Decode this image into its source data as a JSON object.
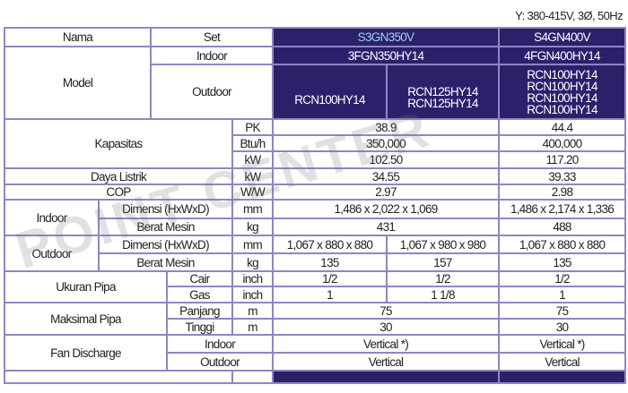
{
  "voltage_note": "Y: 380-415V, 3Ø, 50Hz",
  "watermark": "POINT CENTER",
  "header": {
    "nama": "Nama",
    "set": "Set",
    "model": "Model",
    "indoor": "Indoor",
    "outdoor": "Outdoor"
  },
  "models": {
    "s3": {
      "set": "S3GN350V",
      "indoor": "3FGN350HY14",
      "outdoor_a": "RCN100HY14",
      "outdoor_b": [
        "RCN125HY14",
        "RCN125HY14"
      ]
    },
    "s4": {
      "set": "S4GN400V",
      "indoor": "4FGN400HY14",
      "outdoor": [
        "RCN100HY14",
        "RCN100HY14",
        "RCN100HY14",
        "RCN100HY14"
      ]
    }
  },
  "rows": {
    "kapasitas": {
      "label": "Kapasitas",
      "pk": {
        "unit": "PK",
        "s3": "38.9",
        "s4": "44.4"
      },
      "btu": {
        "unit": "Btu/h",
        "s3": "350,000",
        "s4": "400,000"
      },
      "kw": {
        "unit": "kW",
        "s3": "102.50",
        "s4": "117.20"
      }
    },
    "daya": {
      "label": "Daya Listrik",
      "unit": "kW",
      "s3": "34.55",
      "s4": "39.33"
    },
    "cop": {
      "label": "COP",
      "unit": "W/W",
      "s3": "2.97",
      "s4": "2.98"
    },
    "indoor": {
      "label": "Indoor",
      "dim": {
        "label": "Dimensi (HxWxD)",
        "unit": "mm",
        "s3": "1,486 x 2,022 x 1,069",
        "s4": "1,486 x 2,174 x 1,336"
      },
      "berat": {
        "label": "Berat Mesin",
        "unit": "kg",
        "s3": "431",
        "s4": "488"
      }
    },
    "outdoor": {
      "label": "Outdoor",
      "dim": {
        "label": "Dimensi (HxWxD)",
        "unit": "mm",
        "s3a": "1,067 x 880 x 880",
        "s3b": "1,067 x 980 x 980",
        "s4": "1,067 x 880 x 880"
      },
      "berat": {
        "label": "Berat Mesin",
        "unit": "kg",
        "s3a": "135",
        "s3b": "157",
        "s4": "135"
      }
    },
    "ukuran_pipa": {
      "label": "Ukuran Pipa",
      "cair": {
        "label": "Cair",
        "unit": "inch",
        "s3a": "1/2",
        "s3b": "1/2",
        "s4": "1/2"
      },
      "gas": {
        "label": "Gas",
        "unit": "inch",
        "s3a": "1",
        "s3b": "1 1/8",
        "s4": "1"
      }
    },
    "maks_pipa": {
      "label": "Maksimal Pipa",
      "panjang": {
        "label": "Panjang",
        "unit": "m",
        "s3": "75",
        "s4": "75"
      },
      "tinggi": {
        "label": "Tinggi",
        "unit": "m",
        "s3": "30",
        "s4": "30"
      }
    },
    "fan": {
      "label": "Fan Discharge",
      "indoor": {
        "label": "Indoor",
        "s3": "Vertical *)",
        "s4": "Vertical *)"
      },
      "outdoor": {
        "label": "Outdoor",
        "s3": "Vertical",
        "s4": "Vertical"
      }
    }
  },
  "colors": {
    "header_bg": "#2b216b",
    "border": "#8e86c4"
  }
}
